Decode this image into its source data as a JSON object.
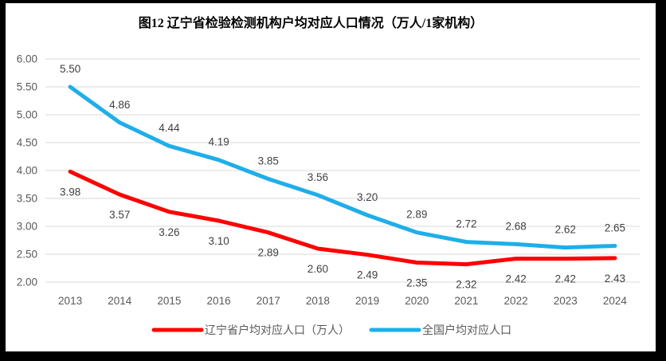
{
  "window": {
    "frame_color": "#000000",
    "canvas_color": "#ffffff"
  },
  "chart_data": {
    "type": "line",
    "title": "图12 辽宁省检验检测机构户均对应人口情况（万人/1家机构）",
    "categories": [
      "2013",
      "2014",
      "2015",
      "2016",
      "2017",
      "2018",
      "2019",
      "2020",
      "2021",
      "2022",
      "2023",
      "2024"
    ],
    "series": [
      {
        "name": "辽宁省户均对应人口（万人）",
        "color": "#ff0000",
        "label_position": "below",
        "values": [
          3.98,
          3.57,
          3.26,
          3.1,
          2.89,
          2.6,
          2.49,
          2.35,
          2.32,
          2.42,
          2.42,
          2.43
        ]
      },
      {
        "name": "全国户均对应人口",
        "color": "#1faee9",
        "label_position": "above",
        "values": [
          5.5,
          4.86,
          4.44,
          4.19,
          3.85,
          3.56,
          3.2,
          2.89,
          2.72,
          2.68,
          2.62,
          2.65
        ]
      }
    ],
    "xlabel": "",
    "ylabel": "",
    "ylim": [
      2.0,
      6.0
    ],
    "ytick_labels": [
      "2.00",
      "2.50",
      "3.00",
      "3.50",
      "4.00",
      "4.50",
      "5.00",
      "5.50",
      "6.00"
    ],
    "grid": true,
    "legend_position": "bottom",
    "value_labels": true,
    "value_label_format": "0.00"
  },
  "style": {
    "gridline_color": "#d9d9d9",
    "axis_label_color": "#595959",
    "data_label_color": "#404040",
    "legend_text_color": "#595959",
    "title_color": "#000000"
  }
}
